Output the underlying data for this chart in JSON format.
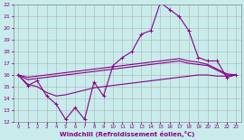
{
  "xlabel": "Windchill (Refroidissement éolien,°C)",
  "xlim": [
    -0.5,
    23.5
  ],
  "ylim": [
    12,
    22
  ],
  "yticks": [
    12,
    13,
    14,
    15,
    16,
    17,
    18,
    19,
    20,
    21,
    22
  ],
  "xticks": [
    0,
    1,
    2,
    3,
    4,
    5,
    6,
    7,
    8,
    9,
    10,
    11,
    12,
    13,
    14,
    15,
    16,
    17,
    18,
    19,
    20,
    21,
    22,
    23
  ],
  "bg_color": "#c8ecec",
  "grid_color": "#b0b0b0",
  "line_color": "#880088",
  "series1_x": [
    0,
    1,
    2,
    3,
    4,
    5,
    6,
    7,
    8,
    9,
    10,
    11,
    12,
    13,
    14,
    15,
    16,
    17,
    18,
    19,
    20,
    21,
    22,
    23
  ],
  "series1_y": [
    16.0,
    15.1,
    15.5,
    14.2,
    13.5,
    12.2,
    13.2,
    12.2,
    15.4,
    14.2,
    16.8,
    17.5,
    18.0,
    19.5,
    19.8,
    22.2,
    21.6,
    21.0,
    19.8,
    17.5,
    17.2,
    17.2,
    15.8,
    16.0
  ],
  "series2_x": [
    0,
    1,
    2,
    3,
    4,
    5,
    6,
    7,
    8,
    9,
    10,
    11,
    12,
    13,
    14,
    15,
    16,
    17,
    18,
    19,
    20,
    21,
    22,
    23
  ],
  "series2_y": [
    16.0,
    15.8,
    15.9,
    16.0,
    16.1,
    16.2,
    16.3,
    16.4,
    16.5,
    16.6,
    16.7,
    16.8,
    16.9,
    17.0,
    17.1,
    17.2,
    17.3,
    17.4,
    17.2,
    17.1,
    16.9,
    16.5,
    16.1,
    16.0
  ],
  "series3_x": [
    0,
    1,
    2,
    3,
    4,
    5,
    6,
    7,
    8,
    9,
    10,
    11,
    12,
    13,
    14,
    15,
    16,
    17,
    18,
    19,
    20,
    21,
    22,
    23
  ],
  "series3_y": [
    16.0,
    15.6,
    15.7,
    15.8,
    15.9,
    16.0,
    16.1,
    16.2,
    16.3,
    16.4,
    16.5,
    16.6,
    16.7,
    16.8,
    16.9,
    17.0,
    17.1,
    17.2,
    17.0,
    16.9,
    16.8,
    16.4,
    16.0,
    16.0
  ],
  "series4_x": [
    0,
    1,
    2,
    3,
    4,
    5,
    6,
    7,
    8,
    9,
    10,
    11,
    12,
    13,
    14,
    15,
    16,
    17,
    18,
    19,
    20,
    21,
    22,
    23
  ],
  "series4_y": [
    16.0,
    15.2,
    15.0,
    14.5,
    14.2,
    14.3,
    14.5,
    14.7,
    14.9,
    15.0,
    15.1,
    15.2,
    15.3,
    15.4,
    15.5,
    15.6,
    15.7,
    15.8,
    15.9,
    16.0,
    16.0,
    15.9,
    15.9,
    16.0
  ]
}
